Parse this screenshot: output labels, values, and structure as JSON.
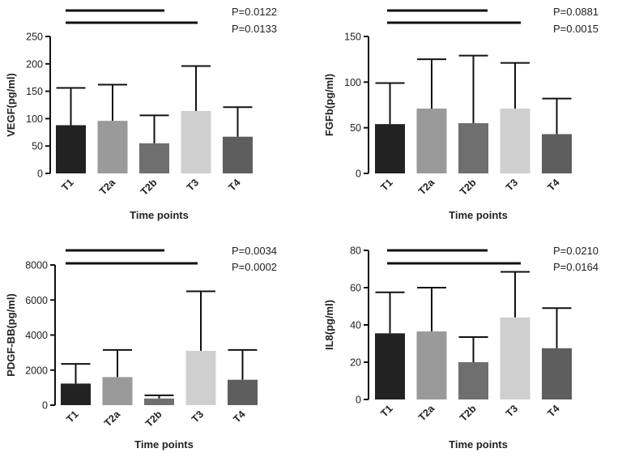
{
  "chart_data": [
    {
      "type": "bar",
      "ylabel": "VEGF(pg/ml)",
      "xlabel": "Time points",
      "categories": [
        "T1",
        "T2a",
        "T2b",
        "T3",
        "T4"
      ],
      "values": [
        88,
        96,
        55,
        114,
        67
      ],
      "error_upper": [
        156,
        162,
        106,
        196,
        121
      ],
      "ylim": [
        0,
        250
      ],
      "yticks": [
        0,
        50,
        100,
        150,
        200,
        250
      ],
      "p_values": [
        "P=0.0122",
        "P=0.0133"
      ],
      "colors": [
        "#222222",
        "#9a9a9a",
        "#6f6f6f",
        "#cfcfcf",
        "#5e5e5e"
      ]
    },
    {
      "type": "bar",
      "ylabel": "FGFb(pg/ml)",
      "xlabel": "Time points",
      "categories": [
        "T1",
        "T2a",
        "T2b",
        "T3",
        "T4"
      ],
      "values": [
        54,
        71,
        55,
        71,
        43
      ],
      "error_upper": [
        99,
        125,
        129,
        121,
        82
      ],
      "ylim": [
        0,
        150
      ],
      "yticks": [
        0,
        50,
        100,
        150
      ],
      "p_values": [
        "P=0.0881",
        "P=0.0015"
      ],
      "colors": [
        "#222222",
        "#9a9a9a",
        "#6f6f6f",
        "#cfcfcf",
        "#5e5e5e"
      ]
    },
    {
      "type": "bar",
      "ylabel": "PDGF-BB(pg/ml)",
      "xlabel": "Time points",
      "categories": [
        "T1",
        "T2a",
        "T2b",
        "T3",
        "T4"
      ],
      "values": [
        1230,
        1600,
        380,
        3100,
        1450
      ],
      "error_upper": [
        2350,
        3150,
        560,
        6500,
        3150
      ],
      "ylim": [
        0,
        8000
      ],
      "yticks": [
        0,
        2000,
        4000,
        6000,
        8000
      ],
      "p_values": [
        "P=0.0034",
        "P=0.0002"
      ],
      "colors": [
        "#222222",
        "#9a9a9a",
        "#6f6f6f",
        "#cfcfcf",
        "#5e5e5e"
      ]
    },
    {
      "type": "bar",
      "ylabel": "IL8(pg/ml)",
      "xlabel": "Time points",
      "categories": [
        "T1",
        "T2a",
        "T2b",
        "T3",
        "T4"
      ],
      "values": [
        35.5,
        36.5,
        20,
        44,
        27.5
      ],
      "error_upper": [
        57.5,
        60,
        33.5,
        68.5,
        49
      ],
      "ylim": [
        0,
        80
      ],
      "yticks": [
        0,
        20,
        40,
        60,
        80
      ],
      "p_values": [
        "P=0.0210",
        "P=0.0164"
      ],
      "colors": [
        "#222222",
        "#9a9a9a",
        "#6f6f6f",
        "#cfcfcf",
        "#5e5e5e"
      ]
    }
  ]
}
